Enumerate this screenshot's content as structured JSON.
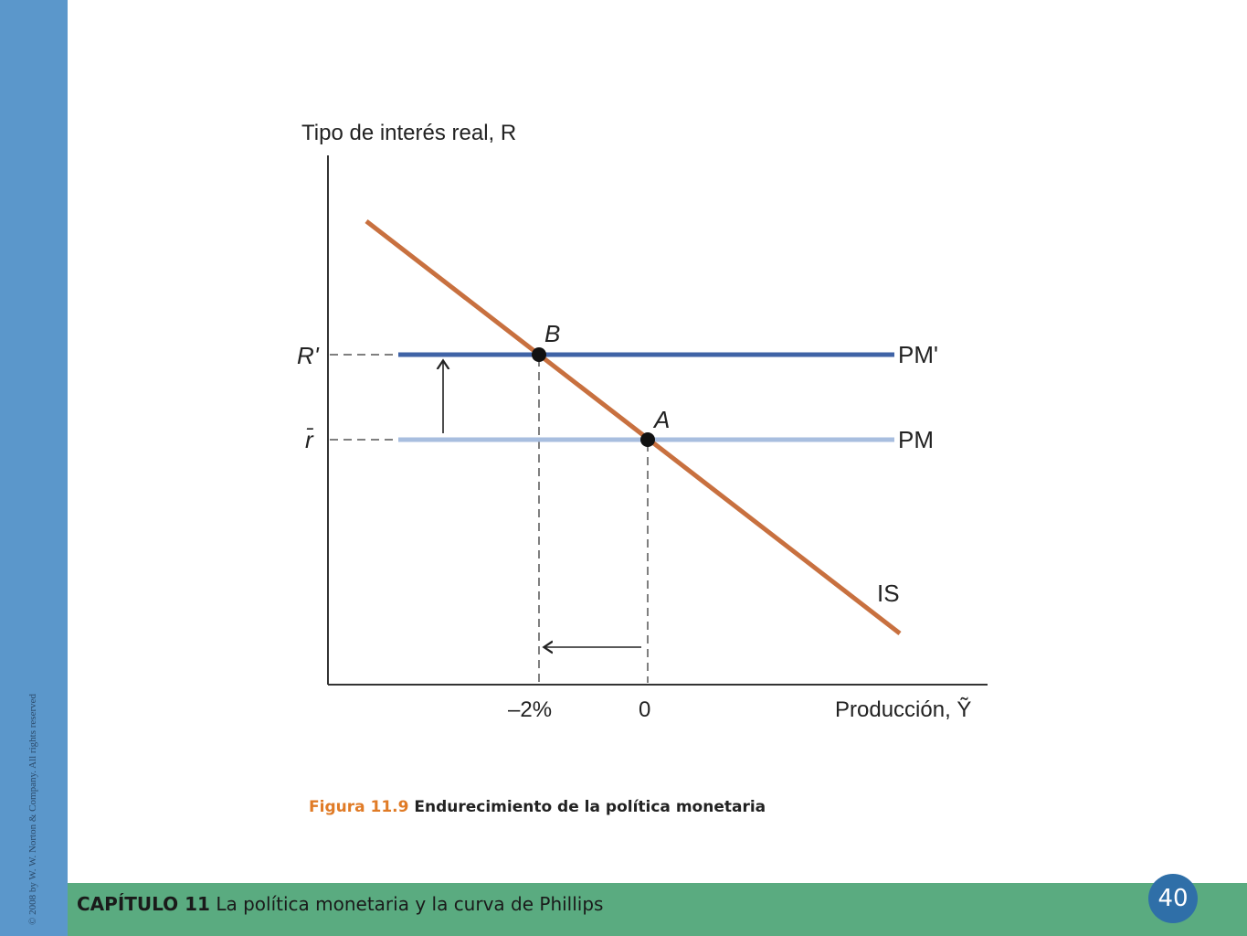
{
  "sidebar": {
    "copyright": "© 2008 by W. W. Norton & Company. All rights reserved"
  },
  "footer": {
    "chapter_prefix": "CAPÍTULO 11",
    "chapter_title": "La política monetaria y la curva de Phillips",
    "page_number": "40"
  },
  "caption": {
    "figure_label": "Figura 11.9",
    "figure_title": "Endurecimiento de la política monetaria"
  },
  "diagram": {
    "y_axis_title": "Tipo de interés real, R",
    "x_axis_title": "Producción, Ỹ",
    "y_ticks": {
      "r_prime": "R'",
      "r_bar": "r̄"
    },
    "x_ticks": {
      "minus_two": "–2%",
      "zero": "0"
    },
    "curves": {
      "pm_prime": "PM'",
      "pm": "PM",
      "is": "IS"
    },
    "points": {
      "b": "B",
      "a": "A"
    },
    "colors": {
      "is": "#c8703f",
      "pm_prime": "#3f63a6",
      "pm": "#a8bedf",
      "axis": "#333333"
    }
  }
}
